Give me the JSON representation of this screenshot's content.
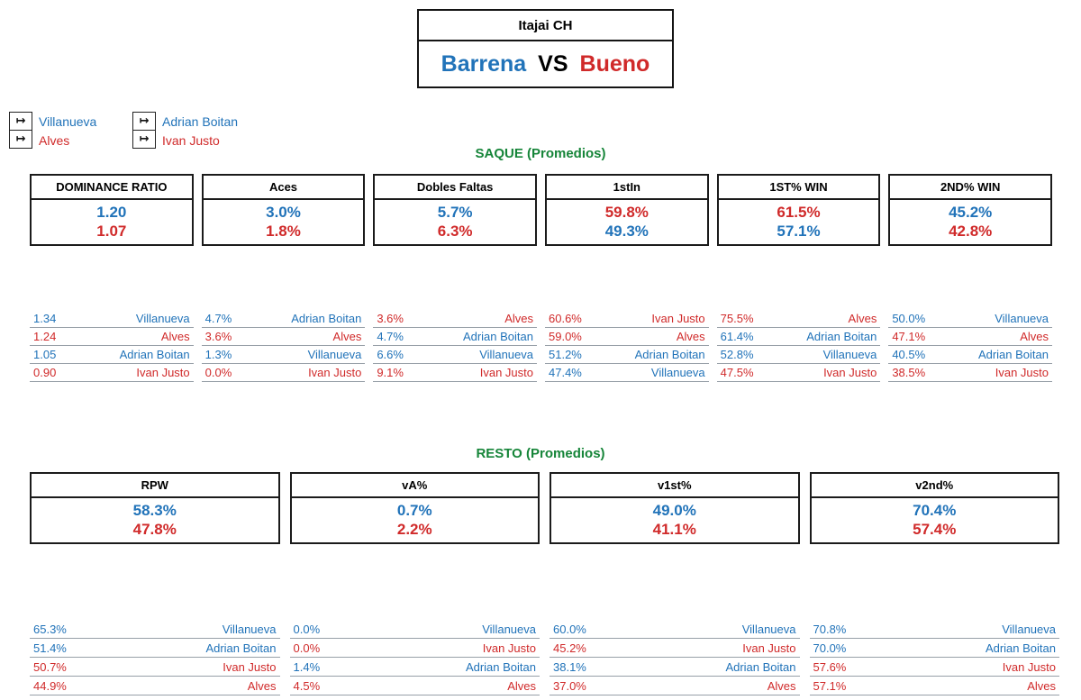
{
  "colors": {
    "blue": "#2173B9",
    "red": "#D02A2A",
    "green": "#168539",
    "border": "#141414"
  },
  "header": {
    "tournament": "Itajai CH",
    "left_player": "Barrena",
    "vs": "VS",
    "right_player": "Bueno"
  },
  "legend": {
    "icon": "↦",
    "groups": [
      {
        "items": [
          {
            "label": "Villanueva",
            "color": "blue"
          },
          {
            "label": "Alves",
            "color": "red"
          }
        ]
      },
      {
        "items": [
          {
            "label": "Adrian Boitan",
            "color": "blue"
          },
          {
            "label": "Ivan Justo",
            "color": "red"
          }
        ]
      }
    ]
  },
  "chart_data": [
    {
      "type": "table",
      "title": "SAQUE (Promedios)",
      "stats": [
        {
          "label": "DOMINANCE RATIO",
          "values": [
            {
              "value": "1.20",
              "color": "blue"
            },
            {
              "value": "1.07",
              "color": "red"
            }
          ],
          "rows": [
            {
              "value": "1.34",
              "name": "Villanueva",
              "color": "blue"
            },
            {
              "value": "1.24",
              "name": "Alves",
              "color": "red"
            },
            {
              "value": "1.05",
              "name": "Adrian Boitan",
              "color": "blue"
            },
            {
              "value": "0.90",
              "name": "Ivan Justo",
              "color": "red"
            }
          ]
        },
        {
          "label": "Aces",
          "values": [
            {
              "value": "3.0%",
              "color": "blue"
            },
            {
              "value": "1.8%",
              "color": "red"
            }
          ],
          "rows": [
            {
              "value": "4.7%",
              "name": "Adrian Boitan",
              "color": "blue"
            },
            {
              "value": "3.6%",
              "name": "Alves",
              "color": "red"
            },
            {
              "value": "1.3%",
              "name": "Villanueva",
              "color": "blue"
            },
            {
              "value": "0.0%",
              "name": "Ivan Justo",
              "color": "red"
            }
          ]
        },
        {
          "label": "Dobles Faltas",
          "values": [
            {
              "value": "5.7%",
              "color": "blue"
            },
            {
              "value": "6.3%",
              "color": "red"
            }
          ],
          "rows": [
            {
              "value": "3.6%",
              "name": "Alves",
              "color": "red"
            },
            {
              "value": "4.7%",
              "name": "Adrian Boitan",
              "color": "blue"
            },
            {
              "value": "6.6%",
              "name": "Villanueva",
              "color": "blue"
            },
            {
              "value": "9.1%",
              "name": "Ivan Justo",
              "color": "red"
            }
          ]
        },
        {
          "label": "1stIn",
          "values": [
            {
              "value": "59.8%",
              "color": "red"
            },
            {
              "value": "49.3%",
              "color": "blue"
            }
          ],
          "rows": [
            {
              "value": "60.6%",
              "name": "Ivan Justo",
              "color": "red"
            },
            {
              "value": "59.0%",
              "name": "Alves",
              "color": "red"
            },
            {
              "value": "51.2%",
              "name": "Adrian Boitan",
              "color": "blue"
            },
            {
              "value": "47.4%",
              "name": "Villanueva",
              "color": "blue"
            }
          ]
        },
        {
          "label": "1ST% WIN",
          "values": [
            {
              "value": "61.5%",
              "color": "red"
            },
            {
              "value": "57.1%",
              "color": "blue"
            }
          ],
          "rows": [
            {
              "value": "75.5%",
              "name": "Alves",
              "color": "red"
            },
            {
              "value": "61.4%",
              "name": "Adrian Boitan",
              "color": "blue"
            },
            {
              "value": "52.8%",
              "name": "Villanueva",
              "color": "blue"
            },
            {
              "value": "47.5%",
              "name": "Ivan Justo",
              "color": "red"
            }
          ]
        },
        {
          "label": "2ND% WIN",
          "values": [
            {
              "value": "45.2%",
              "color": "blue"
            },
            {
              "value": "42.8%",
              "color": "red"
            }
          ],
          "rows": [
            {
              "value": "50.0%",
              "name": "Villanueva",
              "color": "blue"
            },
            {
              "value": "47.1%",
              "name": "Alves",
              "color": "red"
            },
            {
              "value": "40.5%",
              "name": "Adrian Boitan",
              "color": "blue"
            },
            {
              "value": "38.5%",
              "name": "Ivan Justo",
              "color": "red"
            }
          ]
        }
      ]
    },
    {
      "type": "table",
      "title": "RESTO (Promedios)",
      "stats": [
        {
          "label": "RPW",
          "values": [
            {
              "value": "58.3%",
              "color": "blue"
            },
            {
              "value": "47.8%",
              "color": "red"
            }
          ],
          "rows": [
            {
              "value": "65.3%",
              "name": "Villanueva",
              "color": "blue"
            },
            {
              "value": "51.4%",
              "name": "Adrian Boitan",
              "color": "blue"
            },
            {
              "value": "50.7%",
              "name": "Ivan Justo",
              "color": "red"
            },
            {
              "value": "44.9%",
              "name": "Alves",
              "color": "red"
            }
          ]
        },
        {
          "label": "vA%",
          "values": [
            {
              "value": "0.7%",
              "color": "blue"
            },
            {
              "value": "2.2%",
              "color": "red"
            }
          ],
          "rows": [
            {
              "value": "0.0%",
              "name": "Villanueva",
              "color": "blue"
            },
            {
              "value": "0.0%",
              "name": "Ivan Justo",
              "color": "red"
            },
            {
              "value": "1.4%",
              "name": "Adrian Boitan",
              "color": "blue"
            },
            {
              "value": "4.5%",
              "name": "Alves",
              "color": "red"
            }
          ]
        },
        {
          "label": "v1st%",
          "values": [
            {
              "value": "49.0%",
              "color": "blue"
            },
            {
              "value": "41.1%",
              "color": "red"
            }
          ],
          "rows": [
            {
              "value": "60.0%",
              "name": "Villanueva",
              "color": "blue"
            },
            {
              "value": "45.2%",
              "name": "Ivan Justo",
              "color": "red"
            },
            {
              "value": "38.1%",
              "name": "Adrian Boitan",
              "color": "blue"
            },
            {
              "value": "37.0%",
              "name": "Alves",
              "color": "red"
            }
          ]
        },
        {
          "label": "v2nd%",
          "values": [
            {
              "value": "70.4%",
              "color": "blue"
            },
            {
              "value": "57.4%",
              "color": "red"
            }
          ],
          "rows": [
            {
              "value": "70.8%",
              "name": "Villanueva",
              "color": "blue"
            },
            {
              "value": "70.0%",
              "name": "Adrian Boitan",
              "color": "blue"
            },
            {
              "value": "57.6%",
              "name": "Ivan Justo",
              "color": "red"
            },
            {
              "value": "57.1%",
              "name": "Alves",
              "color": "red"
            }
          ]
        }
      ]
    }
  ]
}
